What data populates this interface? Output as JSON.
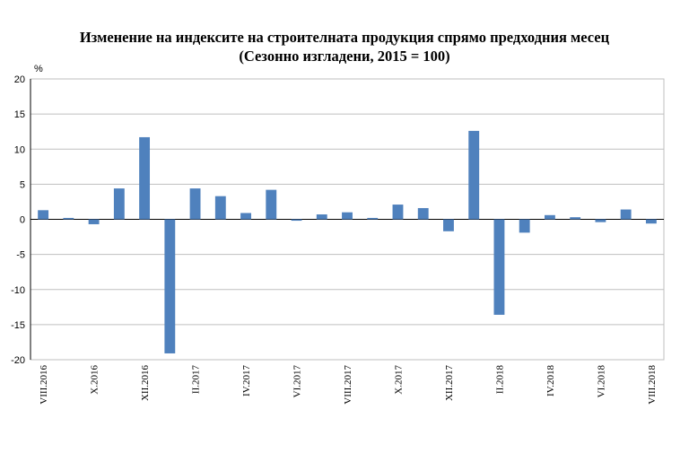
{
  "chart_data": {
    "type": "bar",
    "title": "Изменение на индексите на строителната продукция спрямо предходния месец",
    "subtitle": "(Сезонно изгладени, 2015 = 100)",
    "ylabel": "%",
    "ylim": [
      -20,
      20
    ],
    "yticks": [
      20,
      15,
      10,
      5,
      0,
      -5,
      -10,
      -15,
      -20
    ],
    "grid": true,
    "bar_color": "#4F81BD",
    "categories": [
      "VIII.2016",
      "IX.2016",
      "X.2016",
      "XI.2016",
      "XII.2016",
      "I.2017",
      "II.2017",
      "III.2017",
      "IV.2017",
      "V.2017",
      "VI.2017",
      "VII.2017",
      "VIII.2017",
      "IX.2017",
      "X.2017",
      "XI.2017",
      "XII.2017",
      "I.2018",
      "II.2018",
      "III.2018",
      "IV.2018",
      "V.2018",
      "VI.2018",
      "VII.2018",
      "VIII.2018"
    ],
    "shown_category_labels": [
      "VIII.2016",
      "X.2016",
      "XII.2016",
      "II.2017",
      "IV.2017",
      "VI.2017",
      "VIII.2017",
      "X.2017",
      "XII.2017",
      "II.2018",
      "IV.2018",
      "VI.2018",
      "VIII.2018"
    ],
    "values": [
      1.3,
      0.2,
      -0.7,
      4.4,
      11.7,
      -19.1,
      4.4,
      3.3,
      0.9,
      4.2,
      -0.2,
      0.7,
      1.0,
      0.2,
      2.1,
      1.6,
      -1.7,
      12.6,
      -13.6,
      -1.9,
      0.6,
      0.3,
      -0.4,
      1.4,
      -0.6
    ]
  }
}
